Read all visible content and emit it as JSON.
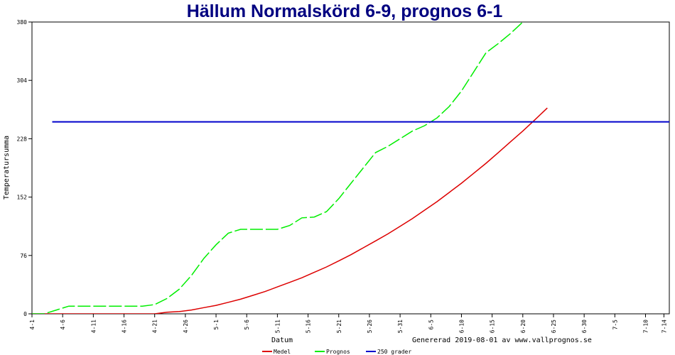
{
  "chart_data": {
    "type": "line",
    "title": "Hällum Normalskörd 6-9, prognos 6-1",
    "xlabel": "Datum",
    "ylabel": "Temperatursumma",
    "footer": "Genererad 2019-08-01 av www.vallprognos.se",
    "ylim": [
      0,
      380
    ],
    "yticks": [
      0,
      76,
      152,
      228,
      304,
      380
    ],
    "grid": false,
    "legend_position": "bottom",
    "xticks": [
      "4-1",
      "4-6",
      "4-11",
      "4-16",
      "4-21",
      "4-26",
      "5-1",
      "5-6",
      "5-11",
      "5-16",
      "5-21",
      "5-26",
      "5-31",
      "6-5",
      "6-10",
      "6-15",
      "6-20",
      "6-25",
      "6-30",
      "7-5",
      "7-10",
      "7-14"
    ],
    "x_day_start": "4-1",
    "series": [
      {
        "name": "Medel",
        "color": "#dd0000",
        "style": "solid",
        "x": [
          0,
          4,
          8,
          12,
          16,
          20,
          22,
          24,
          26,
          28,
          30,
          32,
          34,
          36,
          38,
          40,
          42,
          44,
          46,
          48,
          50,
          52,
          54,
          56,
          58,
          60,
          62,
          64,
          66,
          68,
          70,
          72,
          74,
          76,
          78,
          80,
          82,
          84
        ],
        "y": [
          0,
          0,
          0,
          0,
          0,
          0,
          2,
          3,
          5,
          8,
          11,
          15,
          19,
          24,
          29,
          35,
          41,
          47,
          54,
          61,
          69,
          77,
          86,
          95,
          104,
          114,
          124,
          135,
          146,
          158,
          170,
          183,
          196,
          210,
          224,
          238,
          253,
          268
        ]
      },
      {
        "name": "Prognos",
        "color": "#00ee00",
        "style": "dashed",
        "x": [
          0,
          2,
          4,
          6,
          8,
          10,
          12,
          14,
          16,
          18,
          20,
          22,
          24,
          26,
          28,
          30,
          32,
          34,
          36,
          38,
          40,
          42,
          44,
          46,
          48,
          50,
          52,
          54,
          56,
          58,
          60,
          62,
          64,
          66,
          68,
          70,
          72,
          74,
          76,
          78,
          80,
          82,
          84,
          86
        ],
        "y": [
          0,
          0,
          5,
          10,
          10,
          10,
          10,
          10,
          10,
          10,
          12,
          20,
          32,
          50,
          72,
          90,
          105,
          110,
          110,
          110,
          110,
          115,
          125,
          126,
          133,
          150,
          170,
          190,
          210,
          218,
          228,
          238,
          245,
          255,
          270,
          290,
          315,
          340,
          352,
          365,
          380,
          392,
          405,
          420
        ]
      },
      {
        "name": "250 grader",
        "color": "#0000cc",
        "style": "solid",
        "x": [
          3.3,
          104
        ],
        "y": [
          250,
          250
        ]
      }
    ]
  }
}
